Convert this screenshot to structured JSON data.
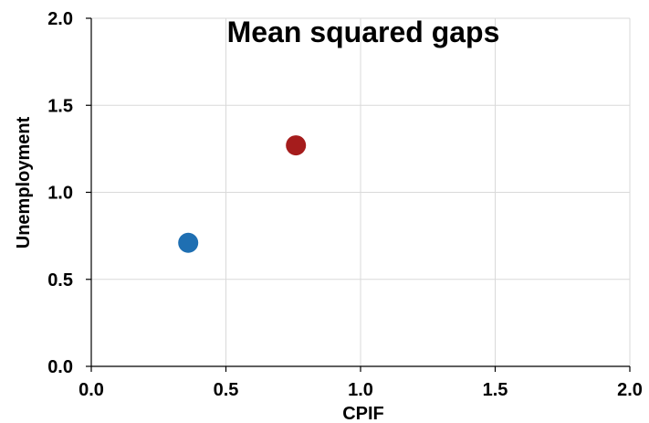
{
  "chart_data": {
    "type": "scatter",
    "title": "Mean squared gaps",
    "xlabel": "CPIF",
    "ylabel": "Unemployment",
    "xlim": [
      0,
      2
    ],
    "ylim": [
      0,
      2
    ],
    "x_ticks": [
      "0.0",
      "0.5",
      "1.0",
      "1.5",
      "2.0"
    ],
    "y_ticks": [
      "0.0",
      "0.5",
      "1.0",
      "1.5",
      "2.0"
    ],
    "grid": true,
    "points": [
      {
        "x": 0.36,
        "y": 0.71,
        "color": "#1f6fb2"
      },
      {
        "x": 0.76,
        "y": 1.27,
        "color": "#a51c1c"
      }
    ]
  }
}
